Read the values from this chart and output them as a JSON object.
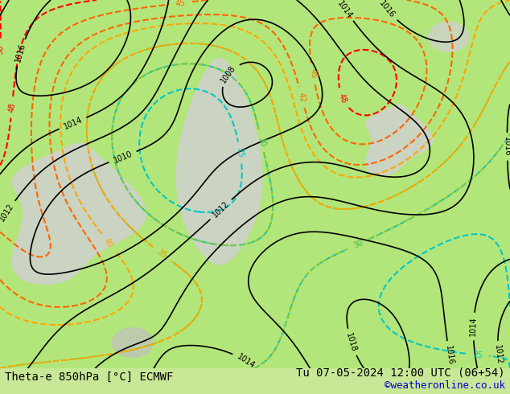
{
  "title_left": "Theta-e 850hPa [°C] ECMWF",
  "title_right": "Tu 07-05-2024 12:00 UTC (06+54)",
  "credit": "©weatheronline.co.uk",
  "background_color": "#b3e67a",
  "map_bg": "#b3e67a",
  "highland_color": "#d0d0d0",
  "contour_color_pressure": "#000000",
  "contour_color_theta_yellow": "#ffa500",
  "contour_color_theta_orange": "#ff6600",
  "contour_color_theta_red": "#ff0000",
  "contour_color_theta_green_light": "#90c830",
  "contour_color_theta_cyan": "#00c8c8",
  "figsize": [
    6.34,
    4.9
  ],
  "dpi": 100,
  "title_fontsize": 10,
  "credit_color": "#0000cc"
}
